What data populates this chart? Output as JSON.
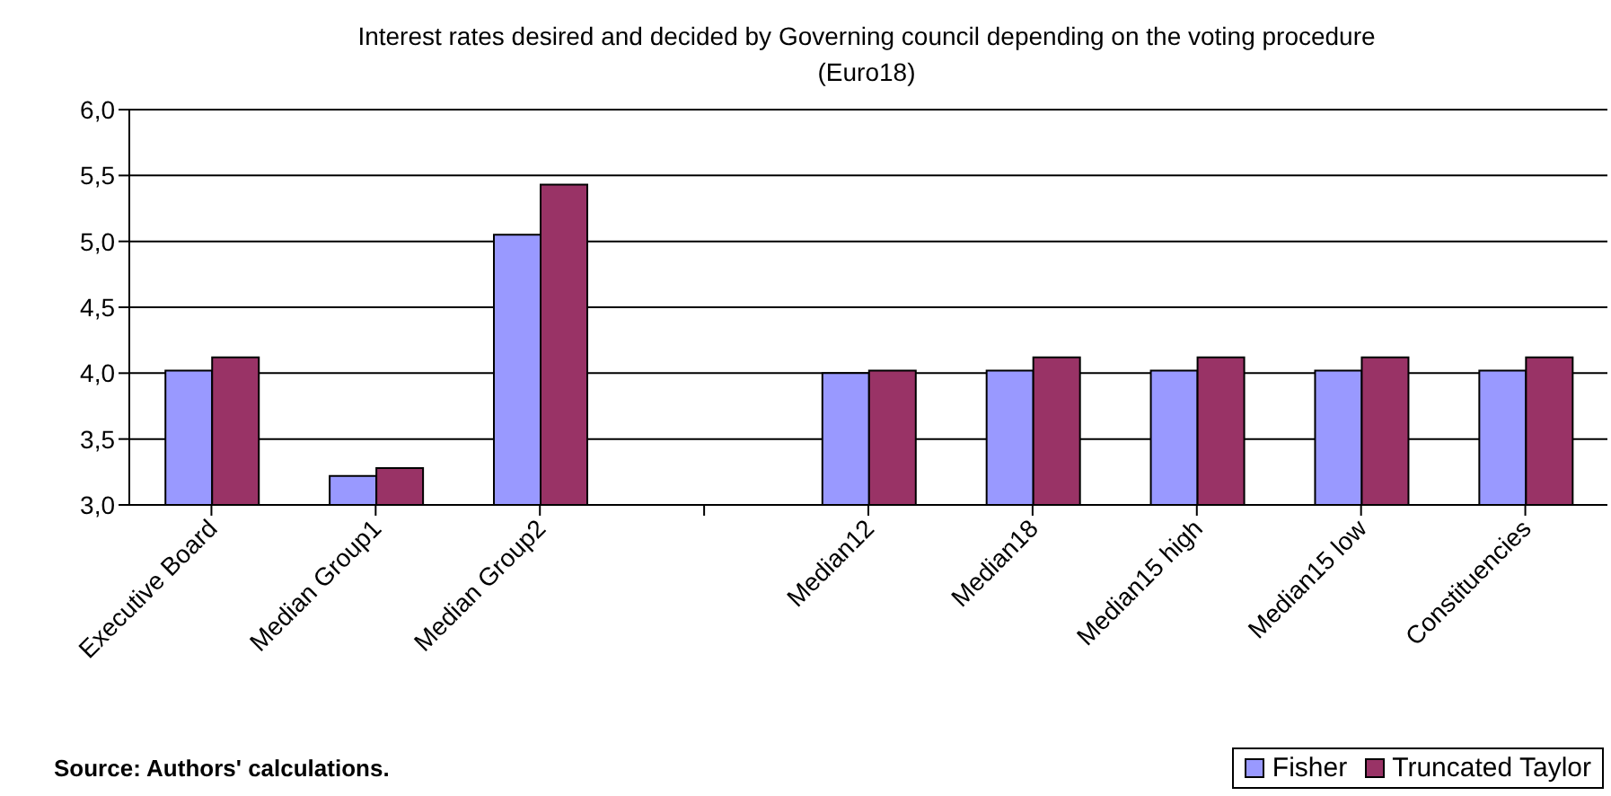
{
  "chart_data": {
    "type": "bar",
    "title": "Interest rates desired and decided by Governing council depending on the voting procedure\n(Euro18)",
    "categories": [
      "Executive Board",
      "Median Group1",
      "Median Group2",
      null,
      "Median12",
      "Median18",
      "Median15 high",
      "Median15 low",
      "Constituencies"
    ],
    "series": [
      {
        "name": "Fisher",
        "color": "#9999ff",
        "values": [
          4.02,
          3.22,
          5.05,
          null,
          4.0,
          4.02,
          4.02,
          4.02,
          4.02
        ]
      },
      {
        "name": "Truncated Taylor",
        "color": "#993366",
        "values": [
          4.12,
          3.28,
          5.43,
          null,
          4.02,
          4.12,
          4.12,
          4.12,
          4.12
        ]
      }
    ],
    "ylim": [
      3,
      6
    ],
    "yticks": [
      {
        "value": 3,
        "label": "3,0"
      },
      {
        "value": 3.5,
        "label": "3,5"
      },
      {
        "value": 4,
        "label": "4,0"
      },
      {
        "value": 4.5,
        "label": "4,5"
      },
      {
        "value": 5,
        "label": "5,0"
      },
      {
        "value": 5.5,
        "label": "5,5"
      },
      {
        "value": 6,
        "label": "6,0"
      }
    ],
    "grid": "y",
    "legend": "bottom right",
    "annotations": [
      "Source: Authors' calculations."
    ]
  }
}
